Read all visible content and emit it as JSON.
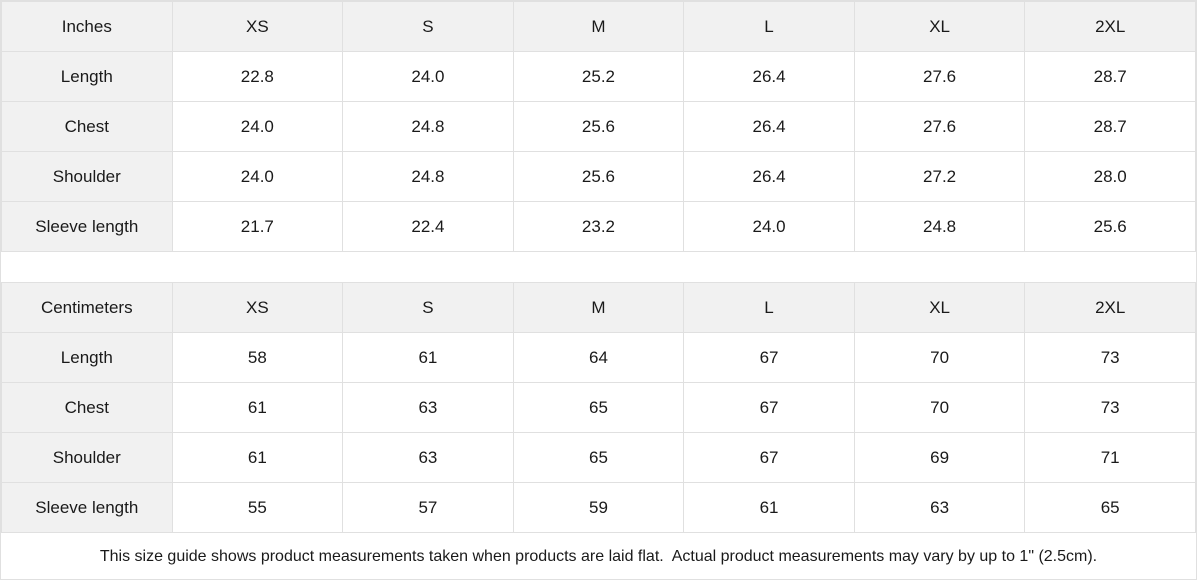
{
  "colors": {
    "cell_shade": "#f1f1f1",
    "grid_line": "#e0e0e0",
    "text": "#1a1a1a",
    "background": "#ffffff"
  },
  "tables": [
    {
      "unit_label": "Inches",
      "sizes": [
        "XS",
        "S",
        "M",
        "L",
        "XL",
        "2XL"
      ],
      "rows": [
        {
          "label": "Length",
          "values": [
            "22.8",
            "24.0",
            "25.2",
            "26.4",
            "27.6",
            "28.7"
          ]
        },
        {
          "label": "Chest",
          "values": [
            "24.0",
            "24.8",
            "25.6",
            "26.4",
            "27.6",
            "28.7"
          ]
        },
        {
          "label": "Shoulder",
          "values": [
            "24.0",
            "24.8",
            "25.6",
            "26.4",
            "27.2",
            "28.0"
          ]
        },
        {
          "label": "Sleeve length",
          "values": [
            "21.7",
            "22.4",
            "23.2",
            "24.0",
            "24.8",
            "25.6"
          ]
        }
      ]
    },
    {
      "unit_label": "Centimeters",
      "sizes": [
        "XS",
        "S",
        "M",
        "L",
        "XL",
        "2XL"
      ],
      "rows": [
        {
          "label": "Length",
          "values": [
            "58",
            "61",
            "64",
            "67",
            "70",
            "73"
          ]
        },
        {
          "label": "Chest",
          "values": [
            "61",
            "63",
            "65",
            "67",
            "70",
            "73"
          ]
        },
        {
          "label": "Shoulder",
          "values": [
            "61",
            "63",
            "65",
            "67",
            "69",
            "71"
          ]
        },
        {
          "label": "Sleeve length",
          "values": [
            "55",
            "57",
            "59",
            "61",
            "63",
            "65"
          ]
        }
      ]
    }
  ],
  "footer": {
    "note": "This size guide shows product measurements taken when products are laid flat.  Actual product measurements may vary by up to 1\" (2.5cm)."
  }
}
